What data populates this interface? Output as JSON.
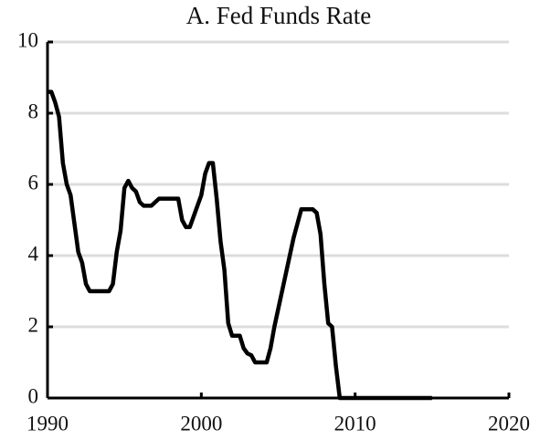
{
  "chart_data": {
    "type": "line",
    "title": "A. Fed Funds Rate",
    "x": [
      1990,
      1990.25,
      1990.5,
      1990.75,
      1991,
      1991.25,
      1991.5,
      1991.75,
      1992,
      1992.25,
      1992.5,
      1992.75,
      1993,
      1994,
      1994.25,
      1994.5,
      1994.75,
      1995,
      1995.25,
      1995.5,
      1995.75,
      1996,
      1996.25,
      1996.75,
      1997.25,
      1998.5,
      1998.75,
      1999,
      1999.25,
      1999.5,
      1999.75,
      2000,
      2000.25,
      2000.5,
      2000.75,
      2001,
      2001.25,
      2001.5,
      2001.75,
      2002,
      2002.5,
      2002.75,
      2003,
      2003.25,
      2003.5,
      2004.25,
      2004.5,
      2004.75,
      2005,
      2005.25,
      2005.5,
      2005.75,
      2006,
      2006.25,
      2006.5,
      2007.25,
      2007.5,
      2007.75,
      2008,
      2008.25,
      2008.5,
      2008.75,
      2009,
      2015
    ],
    "values": [
      8.6,
      8.6,
      8.3,
      7.9,
      6.6,
      6.0,
      5.7,
      4.9,
      4.1,
      3.8,
      3.2,
      3.0,
      3.0,
      3.0,
      3.2,
      4.1,
      4.7,
      5.9,
      6.1,
      5.9,
      5.8,
      5.5,
      5.4,
      5.4,
      5.6,
      5.6,
      5.0,
      4.8,
      4.8,
      5.1,
      5.4,
      5.7,
      6.3,
      6.6,
      6.6,
      5.6,
      4.4,
      3.6,
      2.1,
      1.75,
      1.75,
      1.4,
      1.25,
      1.2,
      1.0,
      1.0,
      1.4,
      2.0,
      2.5,
      3.0,
      3.5,
      4.0,
      4.5,
      4.9,
      5.3,
      5.3,
      5.2,
      4.6,
      3.2,
      2.1,
      2.0,
      0.9,
      0.0,
      0.0
    ],
    "color": "#000000",
    "xlim": [
      1990,
      2020
    ],
    "xticks": [
      1990,
      2000,
      2010,
      2020
    ],
    "ylim": [
      0,
      10
    ],
    "yticks": [
      0,
      2,
      4,
      6,
      8,
      10
    ],
    "grid": true
  }
}
